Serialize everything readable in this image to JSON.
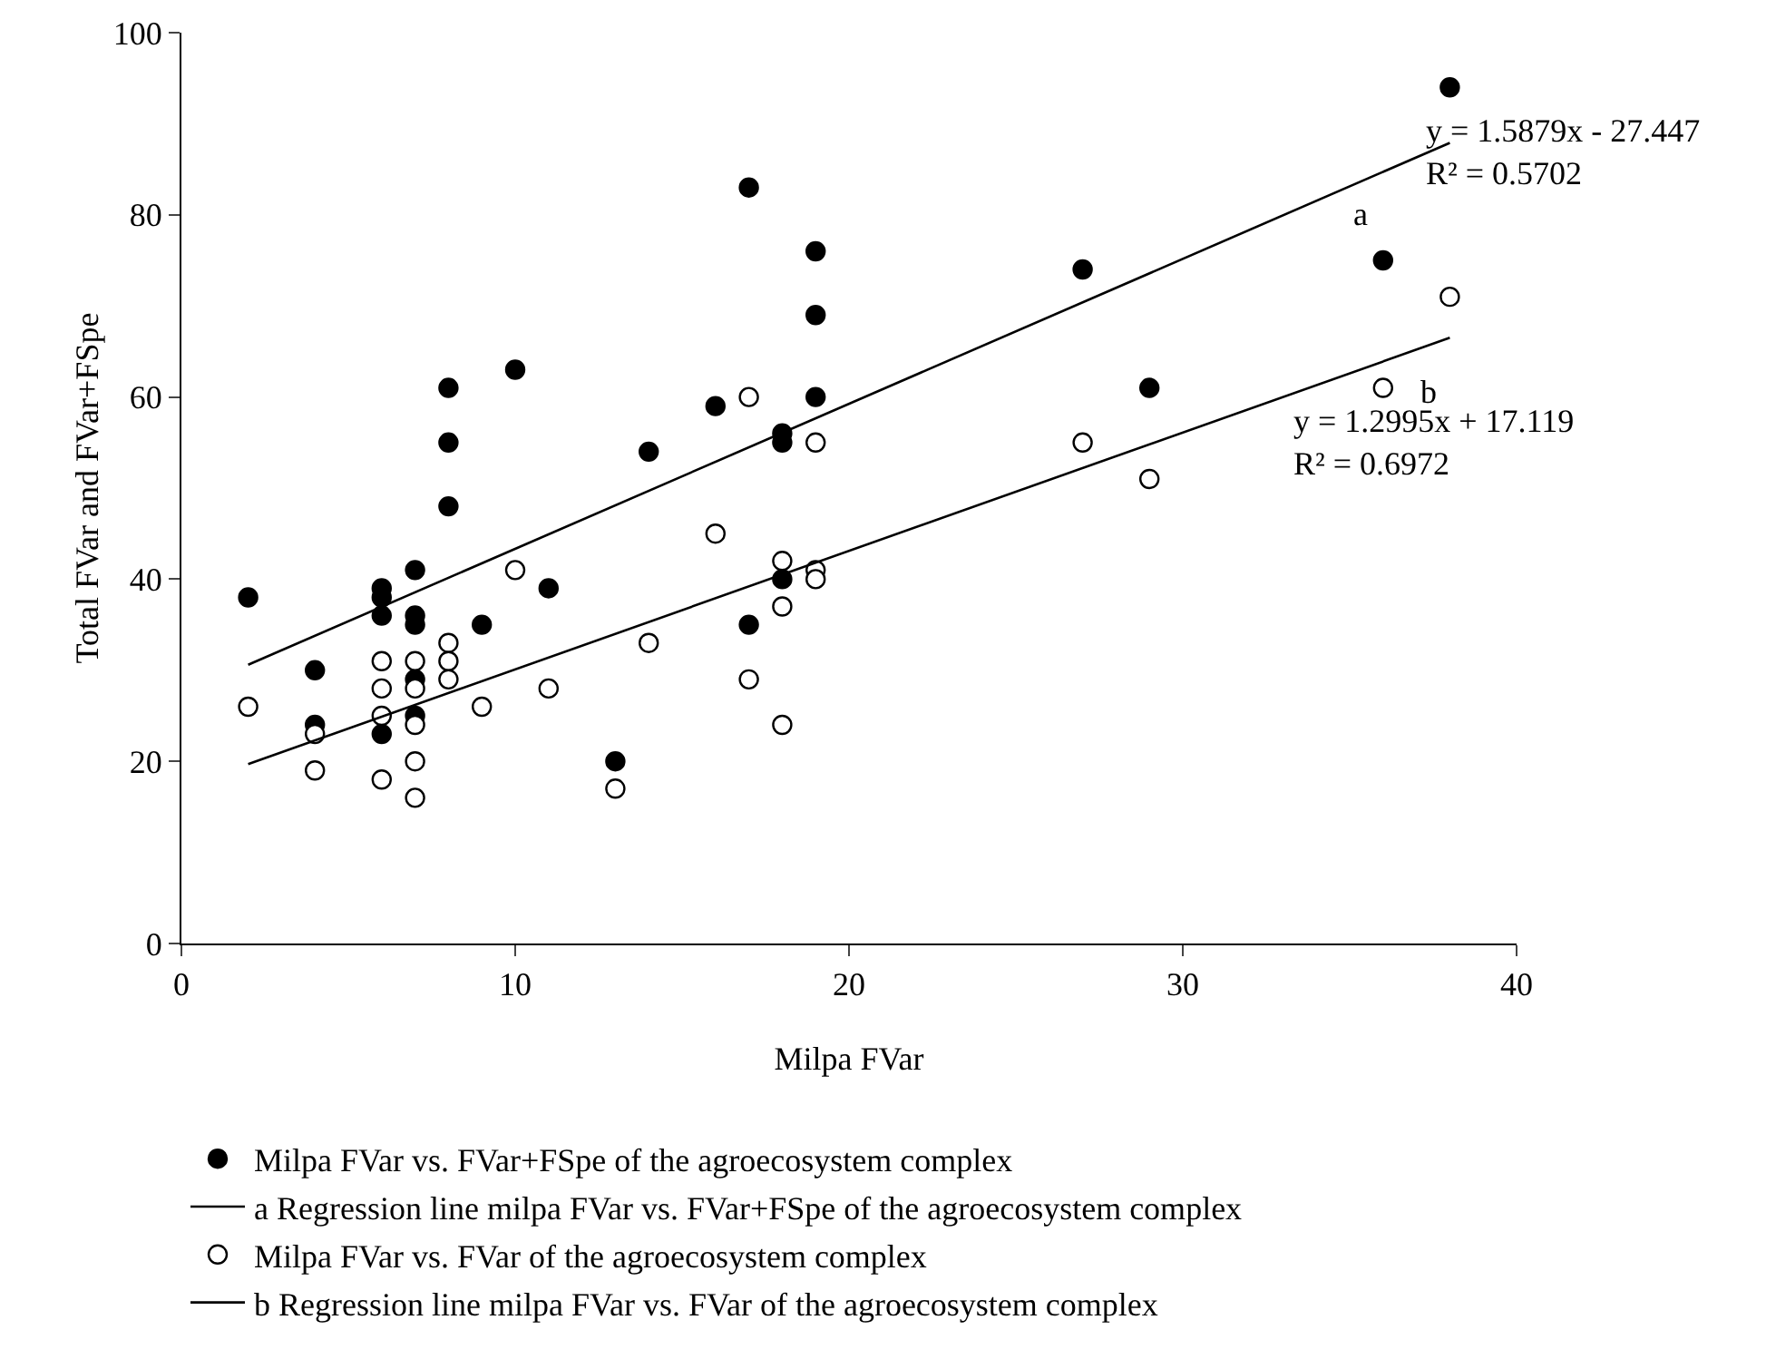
{
  "chart_data": {
    "type": "scatter",
    "xlabel": "Milpa FVar",
    "ylabel": "Total FVar and FVar+FSpe",
    "xlim": [
      0,
      40
    ],
    "xticks": [
      0,
      10,
      20,
      30,
      40
    ],
    "ylim": [
      0,
      100
    ],
    "yticks": [
      0,
      20,
      40,
      60,
      80,
      100
    ],
    "grid": false,
    "legend": "bottom",
    "marker": "circle",
    "series": [
      {
        "name": "Milpa FVar vs. FVar+FSpe of the agroecosystem complex",
        "color": "#000000",
        "x": [
          2,
          4,
          4,
          6,
          6,
          6,
          6,
          7,
          7,
          7,
          7,
          7,
          8,
          8,
          8,
          9,
          10,
          11,
          13,
          14,
          16,
          17,
          17,
          18,
          18,
          18,
          19,
          19,
          19,
          27,
          29,
          36,
          38
        ],
        "values": [
          38,
          30,
          24,
          39,
          38,
          36,
          23,
          41,
          36,
          35,
          29,
          25,
          61,
          55,
          48,
          35,
          63,
          39,
          20,
          54,
          59,
          83,
          35,
          56,
          55,
          40,
          76,
          69,
          60,
          74,
          61,
          75,
          94
        ]
      },
      {
        "name": "a Regression line milpa FVar vs. FVar+FSpe of the agroecosystem complex",
        "type": "line",
        "color": "#000000",
        "line_style": "solid",
        "marker": "none",
        "x": [
          2,
          38
        ],
        "values": [
          30.6,
          87.9
        ]
      },
      {
        "name": "Milpa FVar vs. FVar of the agroecosystem complex",
        "color": "#ffffff",
        "x": [
          2,
          4,
          4,
          6,
          6,
          6,
          6,
          7,
          7,
          7,
          7,
          7,
          8,
          8,
          8,
          9,
          10,
          11,
          13,
          14,
          16,
          17,
          17,
          18,
          18,
          18,
          19,
          19,
          19,
          27,
          29,
          36,
          38
        ],
        "values": [
          26,
          23,
          19,
          31,
          28,
          25,
          18,
          31,
          28,
          24,
          20,
          16,
          33,
          31,
          29,
          26,
          41,
          28,
          17,
          33,
          45,
          60,
          29,
          42,
          37,
          24,
          55,
          41,
          40,
          55,
          51,
          61,
          71
        ]
      },
      {
        "name": "b Regression line milpa FVar vs. FVar of the agroecosystem complex",
        "type": "line",
        "color": "#000000",
        "line_style": "solid",
        "marker": "none",
        "x": [
          2,
          38
        ],
        "values": [
          19.7,
          66.5
        ]
      }
    ],
    "annotations": [
      "a",
      "b",
      "y = 1.5879x - 27.447\nR² = 0.5702",
      "y = 1.2995x + 17.119\nR² = 0.6972"
    ]
  }
}
